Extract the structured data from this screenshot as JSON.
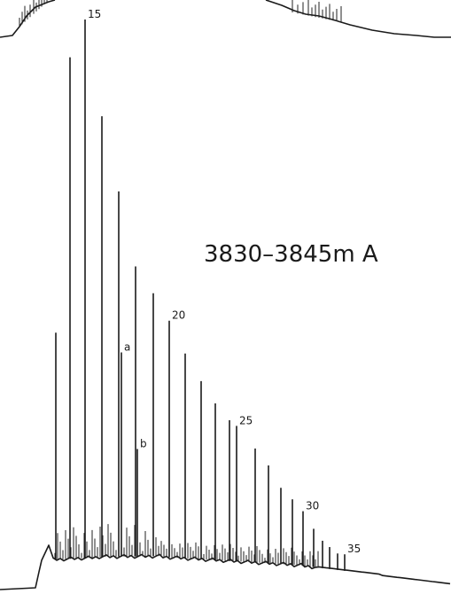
{
  "chart_data": [
    {
      "type": "line",
      "title": "",
      "xlabel": "",
      "ylabel": "",
      "panel": "upper (partially cropped)",
      "grid": false
    },
    {
      "type": "bar",
      "title": "3830–3845m A",
      "xlabel": "",
      "ylabel": "",
      "grid": false,
      "ylim": [
        0,
        100
      ],
      "peaks": [
        {
          "id": "p12",
          "label": "",
          "height": 42
        },
        {
          "id": "p14",
          "label": "",
          "height": 93
        },
        {
          "id": "p15",
          "label": "15",
          "height": 100
        },
        {
          "id": "p16",
          "label": "",
          "height": 82
        },
        {
          "id": "p17",
          "label": "",
          "height": 68
        },
        {
          "id": "p18",
          "label": "",
          "height": 54
        },
        {
          "id": "pa",
          "label": "a",
          "height": 38
        },
        {
          "id": "pb",
          "label": "b",
          "height": 20
        },
        {
          "id": "p19",
          "label": "",
          "height": 49
        },
        {
          "id": "p20",
          "label": "20",
          "height": 44
        },
        {
          "id": "p21",
          "label": "",
          "height": 38
        },
        {
          "id": "p22",
          "label": "",
          "height": 33
        },
        {
          "id": "p23",
          "label": "",
          "height": 29
        },
        {
          "id": "p24",
          "label": "",
          "height": 26
        },
        {
          "id": "p25",
          "label": "25",
          "height": 25
        },
        {
          "id": "p26",
          "label": "",
          "height": 21
        },
        {
          "id": "p27",
          "label": "",
          "height": 18
        },
        {
          "id": "p28",
          "label": "",
          "height": 14
        },
        {
          "id": "p29",
          "label": "",
          "height": 12
        },
        {
          "id": "p30",
          "label": "30",
          "height": 10
        },
        {
          "id": "p31",
          "label": "",
          "height": 7
        },
        {
          "id": "p32",
          "label": "",
          "height": 5
        },
        {
          "id": "p33",
          "label": "",
          "height": 4
        },
        {
          "id": "p34",
          "label": "",
          "height": 3
        },
        {
          "id": "p35",
          "label": "35",
          "height": 3
        }
      ]
    }
  ]
}
